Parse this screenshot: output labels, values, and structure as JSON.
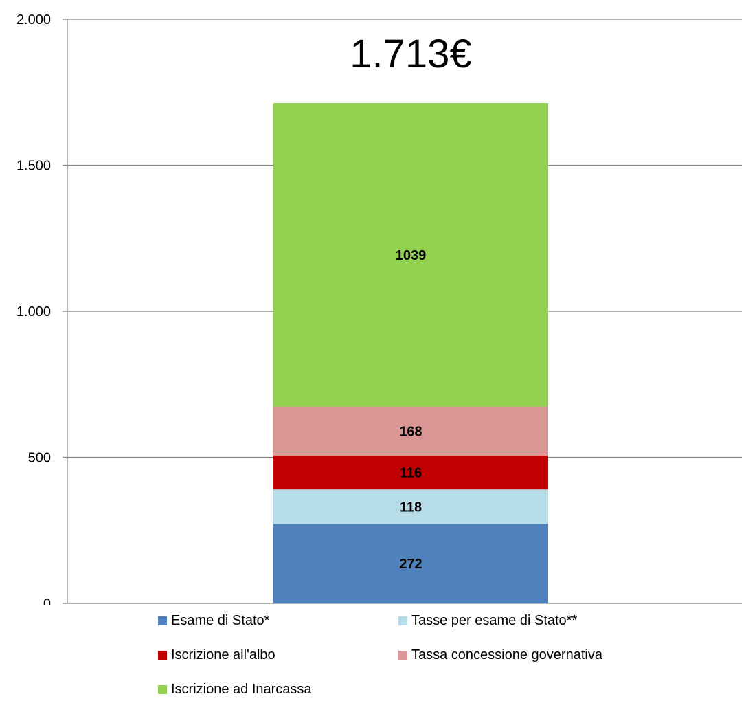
{
  "chart_data": {
    "type": "bar",
    "stacked": true,
    "title": "1.713€",
    "categories": [
      ""
    ],
    "ylim": [
      0,
      2000
    ],
    "yticks": [
      0,
      500,
      1000,
      1500,
      2000
    ],
    "ytick_labels": [
      "0",
      "500",
      "1.000",
      "1.500",
      "2.000"
    ],
    "grid": true,
    "legend_placement": "bottom",
    "series": [
      {
        "name": "Esame di Stato*",
        "values": [
          272
        ],
        "label": "272",
        "color": "#4F81BD"
      },
      {
        "name": "Tasse per esame di Stato**",
        "values": [
          118
        ],
        "label": "118",
        "color": "#B7DDE8"
      },
      {
        "name": "Iscrizione all'albo",
        "values": [
          116
        ],
        "label": "116",
        "color": "#C00000"
      },
      {
        "name": "Tassa concessione governativa",
        "values": [
          168
        ],
        "label": "168",
        "color": "#D99694"
      },
      {
        "name": "Iscrizione ad Inarcassa",
        "values": [
          1039
        ],
        "label": "1039",
        "color": "#92D050"
      }
    ]
  }
}
